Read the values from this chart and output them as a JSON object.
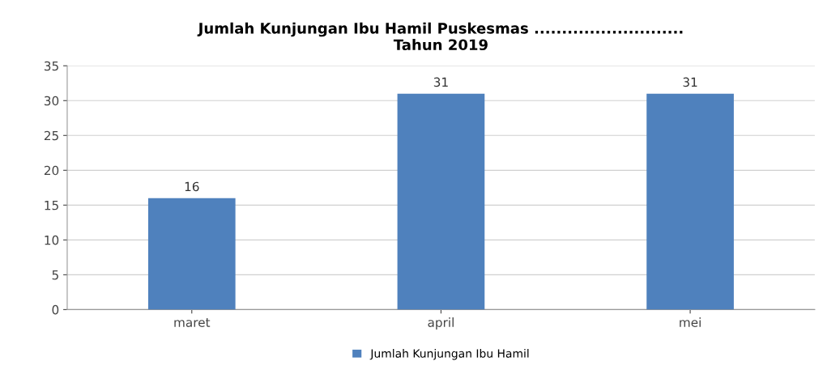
{
  "chart_data": {
    "type": "bar",
    "title": "Jumlah Kunjungan Ibu Hamil Puskesmas ...........................\nTahun 2019",
    "categories": [
      "maret",
      "april",
      "mei"
    ],
    "series": [
      {
        "name": "Jumlah Kunjungan Ibu Hamil",
        "color": "#4f81bd",
        "values": [
          16,
          31,
          31
        ]
      }
    ],
    "ylim": [
      0,
      35
    ],
    "yticks": [
      0,
      5,
      10,
      15,
      20,
      25,
      30,
      35
    ],
    "grid": "y",
    "legend": "bottom",
    "data_labels": true
  }
}
